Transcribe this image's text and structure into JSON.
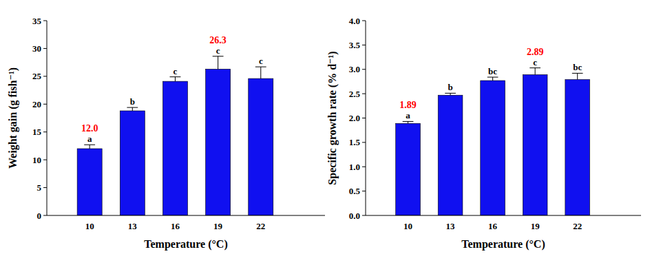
{
  "chart_data": [
    {
      "type": "bar",
      "x_label": "Temperature (°C)",
      "y_label": "Weight gain (g fish⁻¹)",
      "categories": [
        "10",
        "13",
        "16",
        "19",
        "22"
      ],
      "values": [
        12.0,
        18.8,
        24.1,
        26.3,
        24.6
      ],
      "errors": [
        0.7,
        0.6,
        0.8,
        2.3,
        2.1
      ],
      "letters": [
        "a",
        "b",
        "c",
        "c",
        "c"
      ],
      "annotations": [
        {
          "category": "10",
          "text": "12.0"
        },
        {
          "category": "19",
          "text": "26.3"
        }
      ],
      "color": "#1010f0",
      "ylim": [
        0,
        35
      ],
      "yticks": [
        0,
        5,
        10,
        15,
        20,
        25,
        30,
        35
      ]
    },
    {
      "type": "bar",
      "x_label": "Temperature (°C)",
      "y_label": "Specific growth rate (% d⁻¹)",
      "categories": [
        "10",
        "13",
        "16",
        "19",
        "22"
      ],
      "values": [
        1.89,
        2.47,
        2.77,
        2.89,
        2.79
      ],
      "errors": [
        0.04,
        0.04,
        0.07,
        0.14,
        0.13
      ],
      "letters": [
        "a",
        "b",
        "bc",
        "c",
        "bc"
      ],
      "annotations": [
        {
          "category": "10",
          "text": "1.89"
        },
        {
          "category": "19",
          "text": "2.89"
        }
      ],
      "color": "#1010f0",
      "ylim": [
        0,
        4
      ],
      "yticks": [
        {
          "value": 0,
          "label": "0.0"
        },
        {
          "value": 0.5,
          "label": "0.5"
        },
        {
          "value": 1,
          "label": "1.0"
        },
        {
          "value": 1.5,
          "label": "1.5"
        },
        {
          "value": 2,
          "label": "2.0"
        },
        {
          "value": 2.5,
          "label": "2.5"
        },
        {
          "value": 3,
          "label": "3.0"
        },
        {
          "value": 3.5,
          "label": "3.5"
        },
        {
          "value": 4,
          "label": "4.0"
        }
      ]
    }
  ]
}
